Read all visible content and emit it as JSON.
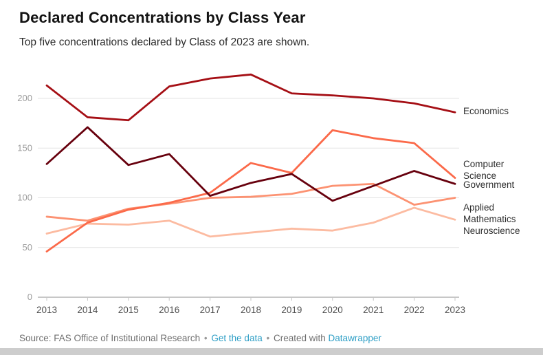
{
  "chart_data": {
    "type": "line",
    "title": "Declared Concentrations by Class Year",
    "subtitle": "Top five concentrations declared by Class of 2023 are shown.",
    "x": [
      2013,
      2014,
      2015,
      2016,
      2017,
      2018,
      2019,
      2020,
      2021,
      2022,
      2023
    ],
    "series": [
      {
        "name": "Economics",
        "color": "#a50f15",
        "values": [
          213,
          181,
          178,
          212,
          220,
          224,
          205,
          203,
          200,
          195,
          186
        ]
      },
      {
        "name": "Government",
        "color": "#67000d",
        "values": [
          134,
          171,
          133,
          144,
          102,
          115,
          124,
          97,
          112,
          127,
          114
        ]
      },
      {
        "name": "Computer Science",
        "color": "#fb6a4a",
        "values": [
          46,
          75,
          88,
          95,
          105,
          135,
          125,
          168,
          160,
          155,
          120
        ]
      },
      {
        "name": "Applied Mathematics",
        "color": "#fc9272",
        "values": [
          81,
          77,
          89,
          94,
          100,
          101,
          104,
          112,
          114,
          93,
          100
        ]
      },
      {
        "name": "Neuroscience",
        "color": "#fcbba1",
        "values": [
          64,
          74,
          73,
          77,
          61,
          65,
          69,
          67,
          75,
          90,
          78
        ]
      }
    ],
    "yticks": [
      0,
      50,
      100,
      150,
      200
    ],
    "ylim": [
      0,
      232
    ],
    "xlabel": "",
    "ylabel": "",
    "grid": true,
    "legend_position": "line-end-labels-right"
  },
  "footer": {
    "source_text": "Source: FAS Office of Institutional Research",
    "separator": "•",
    "get_data_label": "Get the data",
    "created_with_text": "Created with",
    "datawrapper_label": "Datawrapper",
    "link_color": "#2f9fc6"
  }
}
